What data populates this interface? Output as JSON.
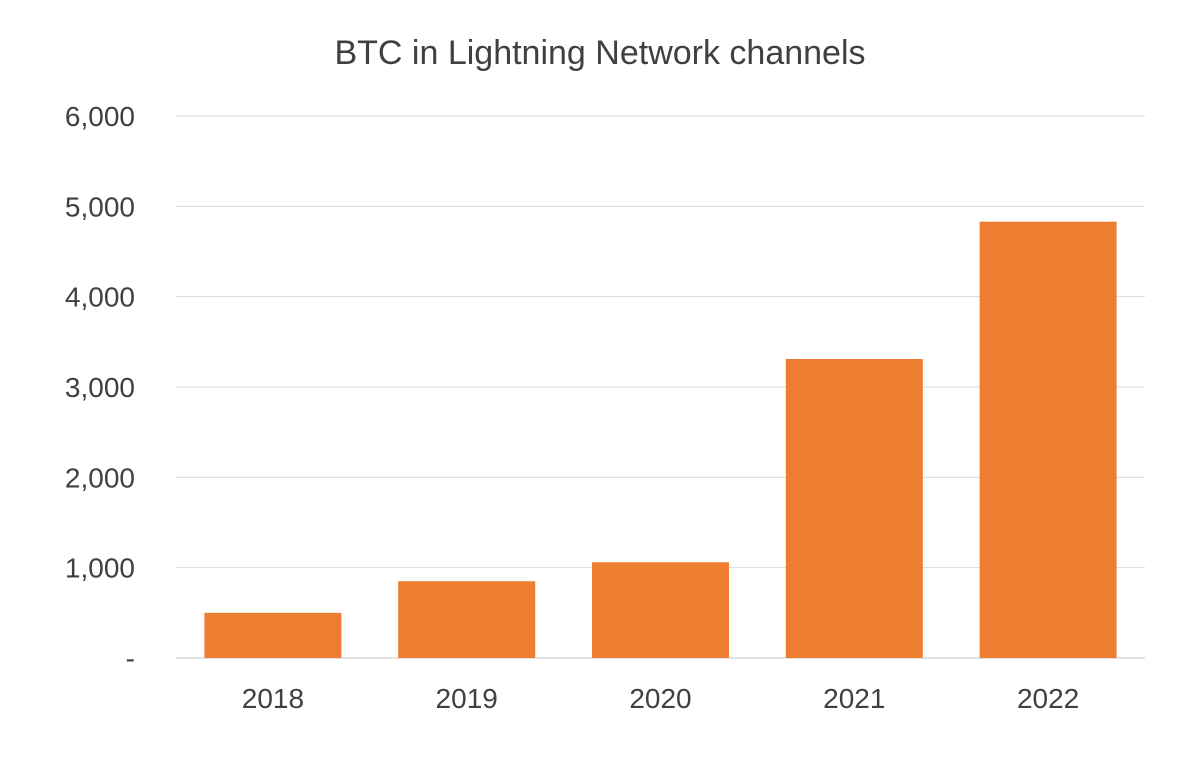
{
  "chart_data": {
    "type": "bar",
    "title": "BTC in Lightning Network channels",
    "xlabel": "",
    "ylabel": "",
    "categories": [
      "2018",
      "2019",
      "2020",
      "2021",
      "2022"
    ],
    "values": [
      500,
      850,
      1060,
      3310,
      4830
    ],
    "ylim": [
      0,
      6000
    ],
    "y_ticks": [
      0,
      1000,
      2000,
      3000,
      4000,
      5000,
      6000
    ],
    "y_tick_labels": [
      "-",
      "1,000",
      "2,000",
      "3,000",
      "4,000",
      "5,000",
      "6,000"
    ],
    "grid": true,
    "legend": "none",
    "colors": {
      "bar": "#ED7D31",
      "grid": "#D9D9D9",
      "text": "#404040"
    }
  }
}
